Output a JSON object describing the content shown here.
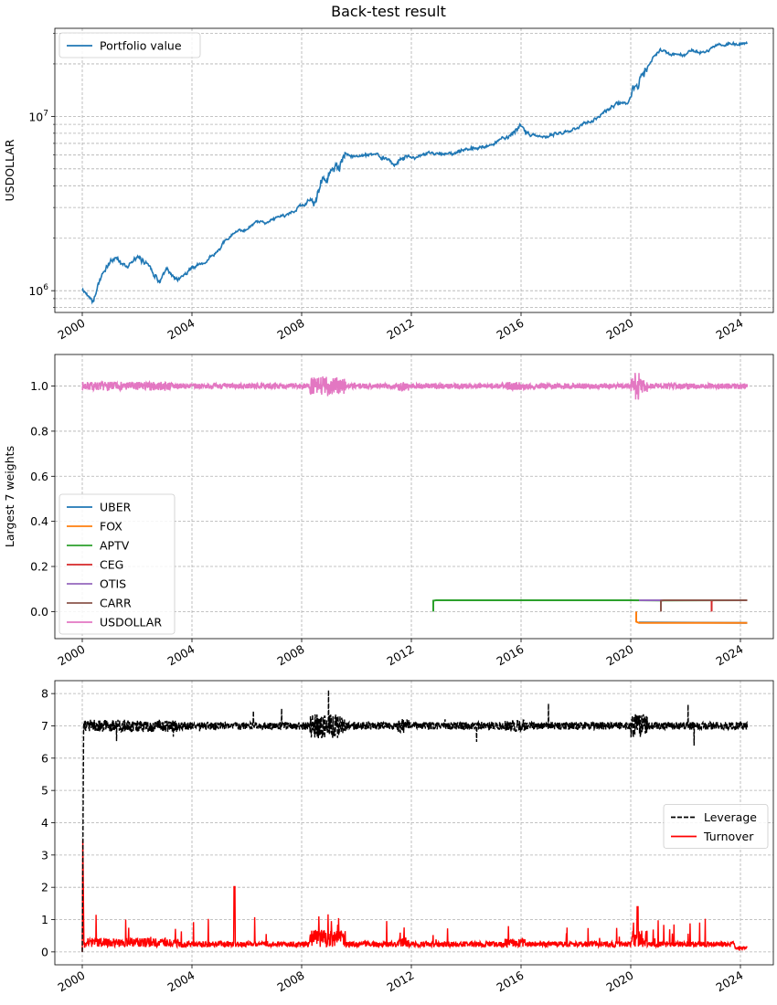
{
  "figure": {
    "title": "Back-test result"
  },
  "colors": {
    "grid": "#b0b0b0",
    "portfolio": "#1f77b4",
    "UBER": "#1f77b4",
    "FOX": "#ff7f0e",
    "APTV": "#2ca02c",
    "CEG": "#d62728",
    "OTIS": "#9467bd",
    "CARR": "#8c564b",
    "USDOLLAR": "#e377c2",
    "leverage": "#000000",
    "turnover": "#ff0000"
  },
  "chart_data": [
    {
      "type": "line",
      "ylabel": "USDOLLAR",
      "yscale": "log",
      "ylim": [
        750000,
        32000000
      ],
      "xlim": [
        1999.0,
        2025.2
      ],
      "xticks": [
        "2000",
        "2004",
        "2008",
        "2012",
        "2016",
        "2020",
        "2024"
      ],
      "ytick_labels": [
        "10^6",
        "10^7"
      ],
      "grid": true,
      "legend": {
        "loc": "upper left",
        "entries": [
          "Portfolio value"
        ]
      },
      "series": [
        {
          "name": "Portfolio value",
          "x": [
            2000.0,
            2000.4,
            2000.8,
            2001.2,
            2001.6,
            2002.0,
            2002.4,
            2002.8,
            2003.1,
            2003.4,
            2003.7,
            2004.0,
            2004.5,
            2005.0,
            2005.5,
            2006.0,
            2006.5,
            2007.0,
            2007.5,
            2008.0,
            2008.5,
            2008.8,
            2009.2,
            2009.6,
            2010.0,
            2010.5,
            2011.0,
            2011.4,
            2011.8,
            2012.2,
            2012.6,
            2013.0,
            2013.5,
            2014.0,
            2014.5,
            2015.0,
            2015.5,
            2016.0,
            2016.4,
            2016.8,
            2017.2,
            2017.6,
            2018.0,
            2018.5,
            2019.0,
            2019.5,
            2019.9,
            2020.2,
            2020.5,
            2020.8,
            2021.1,
            2021.5,
            2022.0,
            2022.5,
            2023.0,
            2023.5,
            2024.0,
            2024.25
          ],
          "y": [
            1000000,
            900000,
            1300000,
            1550000,
            1400000,
            1500000,
            1450000,
            1150000,
            1300000,
            1150000,
            1250000,
            1350000,
            1450000,
            1750000,
            2100000,
            2250000,
            2450000,
            2550000,
            2800000,
            3100000,
            3400000,
            4400000,
            4900000,
            5700000,
            5900000,
            6000000,
            5800000,
            5300000,
            6000000,
            5800000,
            6100000,
            6300000,
            6000000,
            6500000,
            6600000,
            7000000,
            7800000,
            8700000,
            7800000,
            7500000,
            7800000,
            8200000,
            8700000,
            9300000,
            10500000,
            12000000,
            11500000,
            15500000,
            19000000,
            22000000,
            23500000,
            22500000,
            23000000,
            23500000,
            25000000,
            26500000,
            26000000,
            26000000
          ]
        }
      ]
    },
    {
      "type": "line",
      "ylabel": "Largest 7 weights",
      "ylim": [
        -0.12,
        1.14
      ],
      "xlim": [
        1999.0,
        2025.2
      ],
      "xticks": [
        "2000",
        "2004",
        "2008",
        "2012",
        "2016",
        "2020",
        "2024"
      ],
      "yticks": [
        "0.0",
        "0.2",
        "0.4",
        "0.6",
        "0.8",
        "1.0"
      ],
      "grid": true,
      "legend": {
        "loc": "lower left",
        "entries": [
          "UBER",
          "FOX",
          "APTV",
          "CEG",
          "OTIS",
          "CARR",
          "USDOLLAR"
        ]
      },
      "series": [
        {
          "name": "UBER",
          "x": [
            2020.3,
            2024.25
          ],
          "y": [
            -0.048,
            -0.05
          ]
        },
        {
          "name": "FOX",
          "x": [
            2020.2,
            2020.2,
            2020.3,
            2024.25
          ],
          "y": [
            0.0,
            -0.045,
            -0.05,
            -0.05
          ]
        },
        {
          "name": "APTV",
          "x": [
            2012.8,
            2012.8,
            2012.9,
            2020.0,
            2021.0,
            2024.25
          ],
          "y": [
            0.0,
            0.048,
            0.05,
            0.05,
            0.049,
            0.05
          ]
        },
        {
          "name": "CEG",
          "x": [
            2022.95,
            2022.95,
            2023.0,
            2024.25
          ],
          "y": [
            0.0,
            0.048,
            0.05,
            0.05
          ]
        },
        {
          "name": "OTIS",
          "x": [
            2020.3,
            2024.25
          ],
          "y": [
            0.05,
            0.05
          ]
        },
        {
          "name": "CARR",
          "x": [
            2021.1,
            2021.1,
            2021.2,
            2024.25
          ],
          "y": [
            0.0,
            0.048,
            0.05,
            0.05
          ]
        },
        {
          "name": "USDOLLAR",
          "x": [
            2000.0,
            2024.25
          ],
          "y": [
            1.0,
            1.0
          ]
        }
      ]
    },
    {
      "type": "line",
      "ylim": [
        -0.4,
        8.4
      ],
      "xlim": [
        1999.0,
        2025.2
      ],
      "xticks": [
        "2000",
        "2004",
        "2008",
        "2012",
        "2016",
        "2020",
        "2024"
      ],
      "yticks": [
        "0",
        "1",
        "2",
        "3",
        "4",
        "5",
        "6",
        "7",
        "8"
      ],
      "grid": true,
      "legend": {
        "loc": "center right",
        "entries": [
          "Leverage",
          "Turnover"
        ]
      },
      "series": [
        {
          "name": "Leverage",
          "x": [
            2000.0,
            2000.05,
            2024.25
          ],
          "y": [
            0.0,
            7.0,
            7.0
          ]
        },
        {
          "name": "Turnover",
          "x": [
            2000.0,
            2000.02,
            2000.06,
            2024.25
          ],
          "y": [
            0.0,
            3.5,
            0.2,
            0.08
          ]
        }
      ]
    }
  ]
}
